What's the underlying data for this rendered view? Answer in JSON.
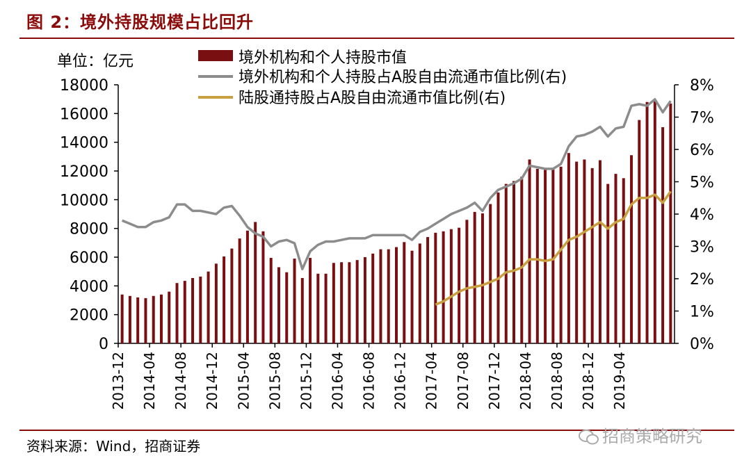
{
  "header": {
    "title": "图 2：境外持股规模占比回升",
    "unit": "单位：亿元"
  },
  "footer": {
    "source": "资料来源：Wind，招商证券",
    "watermark": "招商策略研究"
  },
  "colors": {
    "bar": "#7a0f12",
    "gray_line": "#8c8c8c",
    "gold_line": "#c8a040",
    "title": "#8b0a0a"
  },
  "chart_data": {
    "type": "bar",
    "legend": [
      "境外机构和个人持股市值",
      "境外机构和个人持股占A股自由流通市值比例(右)",
      "陆股通持股占A股自由流通市值比例(右)"
    ],
    "legend_position": "top",
    "x_tick_labels": [
      "2013-12",
      "2014-04",
      "2014-08",
      "2014-12",
      "2015-04",
      "2015-08",
      "2015-12",
      "2016-04",
      "2016-08",
      "2016-12",
      "2017-04",
      "2017-08",
      "2017-12",
      "2018-04",
      "2018-08",
      "2018-12",
      "2019-04"
    ],
    "y_left": {
      "min": 0,
      "max": 18000,
      "ticks": [
        "0",
        "2000",
        "4000",
        "6000",
        "8000",
        "10000",
        "12000",
        "14000",
        "16000",
        "18000"
      ]
    },
    "y_right": {
      "min": 0,
      "max": 8,
      "ticks": [
        "0%",
        "1%",
        "2%",
        "3%",
        "4%",
        "5%",
        "6%",
        "7%",
        "8%"
      ]
    },
    "x_start": "2013-12",
    "series": [
      {
        "name": "境外机构和个人持股市值",
        "type": "bar",
        "axis": "left",
        "values": [
          3400,
          3300,
          3200,
          3150,
          3300,
          3400,
          3600,
          4200,
          4350,
          4550,
          4650,
          5000,
          5550,
          6050,
          6600,
          7300,
          7850,
          8450,
          7800,
          5950,
          5300,
          4950,
          5900,
          4550,
          5950,
          4850,
          4850,
          5600,
          5650,
          5650,
          5800,
          6000,
          6250,
          6550,
          6550,
          6700,
          7050,
          6450,
          6950,
          7400,
          7700,
          7800,
          7950,
          8050,
          8600,
          9150,
          9050,
          9700,
          10500,
          11100,
          11300,
          11600,
          12800,
          12150,
          12200,
          12150,
          12300,
          13250,
          12650,
          12800,
          12200,
          12750,
          11100,
          11800,
          11500,
          13100,
          15550,
          16800,
          16850,
          15050,
          16700
        ]
      },
      {
        "name": "境外机构和个人持股占A股自由流通市值比例(右)",
        "type": "line",
        "axis": "right",
        "values": [
          3.8,
          3.7,
          3.6,
          3.6,
          3.75,
          3.8,
          3.9,
          4.3,
          4.3,
          4.1,
          4.1,
          4.05,
          4.0,
          4.2,
          4.25,
          3.95,
          3.6,
          3.4,
          3.3,
          3.0,
          3.15,
          3.2,
          3.1,
          2.3,
          2.85,
          3.05,
          3.15,
          3.15,
          3.2,
          3.25,
          3.25,
          3.25,
          3.35,
          3.35,
          3.35,
          3.35,
          3.35,
          3.2,
          3.45,
          3.55,
          3.7,
          3.85,
          4.0,
          4.1,
          4.2,
          4.35,
          4.1,
          4.5,
          4.75,
          4.85,
          4.95,
          5.1,
          5.5,
          5.45,
          5.4,
          5.4,
          5.55,
          6.1,
          6.4,
          6.45,
          6.55,
          6.7,
          6.4,
          6.65,
          6.7,
          7.35,
          7.4,
          7.35,
          7.55,
          7.15,
          7.5
        ]
      },
      {
        "name": "陆股通持股占A股自由流通市值比例(右)",
        "type": "line",
        "axis": "right",
        "values": [
          null,
          null,
          null,
          null,
          null,
          null,
          null,
          null,
          null,
          null,
          null,
          null,
          null,
          null,
          null,
          null,
          null,
          null,
          null,
          null,
          null,
          null,
          null,
          null,
          null,
          null,
          null,
          null,
          null,
          null,
          null,
          null,
          null,
          null,
          null,
          null,
          null,
          null,
          null,
          null,
          1.2,
          1.3,
          1.45,
          1.6,
          1.7,
          1.75,
          1.8,
          1.9,
          2.0,
          2.2,
          2.25,
          2.35,
          2.6,
          2.6,
          2.55,
          2.6,
          2.9,
          3.2,
          3.3,
          3.45,
          3.6,
          3.75,
          3.55,
          3.75,
          3.85,
          4.3,
          4.5,
          4.5,
          4.6,
          4.35,
          4.7
        ]
      }
    ]
  }
}
